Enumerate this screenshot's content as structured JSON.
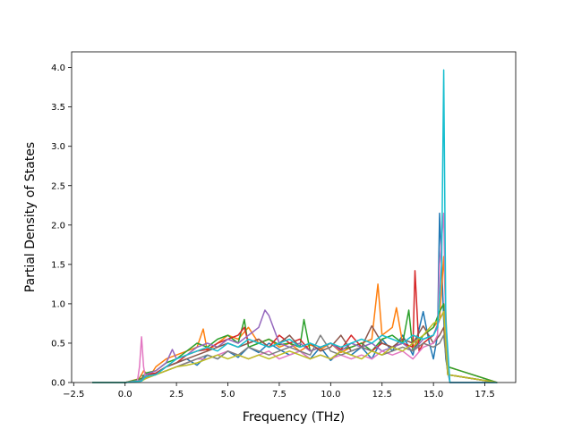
{
  "chart_data": {
    "type": "line",
    "title": "",
    "xlabel": "Frequency (THz)",
    "ylabel": "Partial Density of States",
    "xlim": [
      -2.6,
      19.0
    ],
    "ylim": [
      0.0,
      4.2
    ],
    "grid": false,
    "legend": "none",
    "x_ticks": [
      {
        "value": -2.5,
        "label": "−2.5"
      },
      {
        "value": 0.0,
        "label": "0.0"
      },
      {
        "value": 2.5,
        "label": "2.5"
      },
      {
        "value": 5.0,
        "label": "5.0"
      },
      {
        "value": 7.5,
        "label": "7.5"
      },
      {
        "value": 10.0,
        "label": "10.0"
      },
      {
        "value": 12.5,
        "label": "12.5"
      },
      {
        "value": 15.0,
        "label": "15.0"
      },
      {
        "value": 17.5,
        "label": "17.5"
      }
    ],
    "y_ticks": [
      {
        "value": 0.0,
        "label": "0.0"
      },
      {
        "value": 0.5,
        "label": "0.5"
      },
      {
        "value": 1.0,
        "label": "1.0"
      },
      {
        "value": 1.5,
        "label": "1.5"
      },
      {
        "value": 2.0,
        "label": "2.0"
      },
      {
        "value": 2.5,
        "label": "2.5"
      },
      {
        "value": 3.0,
        "label": "3.0"
      },
      {
        "value": 3.5,
        "label": "3.5"
      },
      {
        "value": 4.0,
        "label": "4.0"
      }
    ],
    "series": [
      {
        "color": "#1f77b4",
        "x": [
          -1.6,
          0.0,
          0.6,
          0.8,
          1.0,
          1.5,
          2.0,
          2.5,
          3.0,
          3.5,
          4.0,
          4.5,
          5.0,
          5.5,
          6.0,
          6.5,
          7.0,
          7.5,
          8.0,
          8.5,
          9.0,
          9.5,
          10.0,
          10.5,
          11.0,
          11.5,
          12.0,
          12.5,
          13.0,
          13.5,
          14.0,
          14.5,
          14.8,
          15.0,
          15.2,
          15.3,
          15.4,
          15.5,
          15.6,
          15.8,
          18.1
        ],
        "y": [
          0,
          0,
          0.02,
          0.1,
          0.05,
          0.12,
          0.2,
          0.25,
          0.3,
          0.22,
          0.35,
          0.3,
          0.4,
          0.32,
          0.45,
          0.38,
          0.5,
          0.42,
          0.35,
          0.4,
          0.3,
          0.45,
          0.28,
          0.4,
          0.35,
          0.45,
          0.3,
          0.55,
          0.4,
          0.6,
          0.35,
          0.9,
          0.5,
          0.3,
          0.6,
          2.15,
          1.5,
          0.8,
          0.3,
          0,
          0
        ]
      },
      {
        "color": "#ff7f0e",
        "x": [
          -1.6,
          0.0,
          0.7,
          0.9,
          1.2,
          1.5,
          2.0,
          2.5,
          3.0,
          3.5,
          3.8,
          4.0,
          4.5,
          5.0,
          5.5,
          6.0,
          6.5,
          7.0,
          7.5,
          8.0,
          8.5,
          9.0,
          9.5,
          10.0,
          10.5,
          11.0,
          11.5,
          12.0,
          12.3,
          12.5,
          13.0,
          13.2,
          13.5,
          14.0,
          14.5,
          15.0,
          15.3,
          15.5,
          15.7,
          18.1
        ],
        "y": [
          0,
          0,
          0.05,
          0.15,
          0.08,
          0.2,
          0.3,
          0.35,
          0.4,
          0.45,
          0.68,
          0.4,
          0.5,
          0.6,
          0.55,
          0.7,
          0.5,
          0.55,
          0.45,
          0.5,
          0.4,
          0.48,
          0.42,
          0.5,
          0.38,
          0.45,
          0.5,
          0.55,
          1.25,
          0.6,
          0.7,
          0.95,
          0.5,
          0.45,
          0.6,
          0.7,
          0.8,
          1.6,
          0.2,
          0
        ]
      },
      {
        "color": "#2ca02c",
        "x": [
          -1.6,
          0.0,
          0.8,
          1.0,
          1.5,
          2.0,
          2.5,
          3.0,
          3.5,
          4.0,
          4.5,
          5.0,
          5.5,
          5.8,
          6.0,
          6.5,
          7.0,
          7.5,
          8.0,
          8.5,
          8.7,
          9.0,
          9.5,
          10.0,
          10.5,
          11.0,
          11.5,
          12.0,
          12.5,
          13.0,
          13.5,
          13.8,
          14.0,
          14.5,
          15.0,
          15.3,
          15.5,
          15.7,
          18.1
        ],
        "y": [
          0,
          0,
          0.05,
          0.12,
          0.15,
          0.25,
          0.3,
          0.4,
          0.5,
          0.45,
          0.55,
          0.6,
          0.5,
          0.8,
          0.45,
          0.5,
          0.55,
          0.48,
          0.5,
          0.45,
          0.8,
          0.4,
          0.45,
          0.5,
          0.42,
          0.45,
          0.5,
          0.4,
          0.55,
          0.6,
          0.5,
          0.92,
          0.4,
          0.6,
          0.7,
          0.9,
          1.0,
          0.2,
          0
        ]
      },
      {
        "color": "#d62728",
        "x": [
          -1.6,
          0.0,
          0.8,
          1.0,
          1.5,
          2.0,
          2.5,
          3.0,
          3.5,
          4.0,
          4.5,
          5.0,
          5.5,
          5.8,
          6.0,
          6.5,
          7.0,
          7.5,
          8.0,
          8.5,
          9.0,
          9.5,
          10.0,
          10.5,
          11.0,
          11.5,
          12.0,
          12.5,
          13.0,
          13.5,
          14.0,
          14.1,
          14.3,
          14.5,
          15.0,
          15.3,
          15.5,
          15.7,
          18.1
        ],
        "y": [
          0,
          0,
          0.03,
          0.1,
          0.12,
          0.2,
          0.25,
          0.35,
          0.4,
          0.42,
          0.5,
          0.55,
          0.6,
          0.7,
          0.5,
          0.55,
          0.45,
          0.6,
          0.5,
          0.55,
          0.4,
          0.45,
          0.5,
          0.42,
          0.6,
          0.45,
          0.4,
          0.5,
          0.45,
          0.5,
          0.45,
          1.42,
          0.4,
          0.5,
          0.6,
          0.8,
          0.9,
          0.1,
          0
        ]
      },
      {
        "color": "#9467bd",
        "x": [
          -1.6,
          0.0,
          0.8,
          1.0,
          1.5,
          2.0,
          2.3,
          2.5,
          3.0,
          3.5,
          4.0,
          4.5,
          5.0,
          5.5,
          6.0,
          6.5,
          6.8,
          7.0,
          7.5,
          8.0,
          8.5,
          9.0,
          9.5,
          10.0,
          10.5,
          11.0,
          11.5,
          12.0,
          12.5,
          13.0,
          13.5,
          14.0,
          14.5,
          15.0,
          15.3,
          15.5,
          15.7,
          18.1
        ],
        "y": [
          0,
          0,
          0.03,
          0.1,
          0.15,
          0.25,
          0.42,
          0.3,
          0.35,
          0.45,
          0.5,
          0.45,
          0.55,
          0.5,
          0.6,
          0.7,
          0.92,
          0.85,
          0.5,
          0.45,
          0.5,
          0.4,
          0.45,
          0.5,
          0.4,
          0.5,
          0.45,
          0.5,
          0.4,
          0.45,
          0.5,
          0.4,
          0.55,
          0.6,
          0.8,
          0.9,
          0.1,
          0
        ]
      },
      {
        "color": "#8c564b",
        "x": [
          -1.6,
          0.0,
          0.8,
          1.0,
          1.5,
          2.0,
          2.5,
          3.0,
          3.5,
          4.0,
          4.5,
          5.0,
          5.5,
          6.0,
          6.5,
          7.0,
          7.5,
          8.0,
          8.5,
          9.0,
          9.5,
          10.0,
          10.5,
          11.0,
          11.5,
          12.0,
          12.5,
          13.0,
          13.5,
          14.0,
          14.5,
          15.0,
          15.3,
          15.5,
          15.7,
          18.1
        ],
        "y": [
          0,
          0,
          0.02,
          0.08,
          0.1,
          0.2,
          0.25,
          0.3,
          0.35,
          0.4,
          0.45,
          0.5,
          0.45,
          0.5,
          0.55,
          0.45,
          0.5,
          0.6,
          0.45,
          0.5,
          0.4,
          0.45,
          0.6,
          0.4,
          0.45,
          0.72,
          0.5,
          0.45,
          0.55,
          0.5,
          0.72,
          0.5,
          0.6,
          0.7,
          0.1,
          0
        ]
      },
      {
        "color": "#e377c2",
        "x": [
          -1.6,
          0.0,
          0.6,
          0.7,
          0.8,
          0.9,
          1.0,
          1.5,
          2.0,
          2.5,
          3.0,
          3.5,
          4.0,
          4.5,
          5.0,
          5.5,
          6.0,
          6.5,
          7.0,
          7.5,
          8.0,
          8.5,
          9.0,
          9.5,
          10.0,
          10.5,
          11.0,
          11.5,
          12.0,
          12.5,
          13.0,
          13.5,
          14.0,
          14.5,
          15.0,
          15.2,
          15.3,
          15.5,
          15.6,
          15.8,
          18.1
        ],
        "y": [
          0,
          0,
          0.02,
          0.2,
          0.58,
          0.2,
          0.05,
          0.1,
          0.15,
          0.2,
          0.25,
          0.3,
          0.3,
          0.35,
          0.4,
          0.35,
          0.3,
          0.35,
          0.4,
          0.3,
          0.35,
          0.4,
          0.3,
          0.35,
          0.3,
          0.35,
          0.3,
          0.35,
          0.3,
          0.4,
          0.35,
          0.4,
          0.3,
          0.45,
          0.5,
          0.6,
          1.5,
          2.15,
          0.6,
          0,
          0
        ]
      },
      {
        "color": "#7f7f7f",
        "x": [
          -1.6,
          0.0,
          0.8,
          1.0,
          1.5,
          2.0,
          2.5,
          3.0,
          3.5,
          4.0,
          4.5,
          5.0,
          5.5,
          6.0,
          6.5,
          7.0,
          7.5,
          8.0,
          8.5,
          9.0,
          9.5,
          10.0,
          10.5,
          11.0,
          11.5,
          12.0,
          12.5,
          13.0,
          13.5,
          14.0,
          14.5,
          15.0,
          15.3,
          15.5,
          15.7,
          18.1
        ],
        "y": [
          0,
          0,
          0.02,
          0.06,
          0.1,
          0.15,
          0.2,
          0.25,
          0.3,
          0.35,
          0.3,
          0.4,
          0.35,
          0.45,
          0.4,
          0.35,
          0.4,
          0.45,
          0.4,
          0.35,
          0.6,
          0.4,
          0.35,
          0.4,
          0.45,
          0.4,
          0.35,
          0.4,
          0.45,
          0.4,
          0.5,
          0.45,
          0.5,
          0.6,
          0.1,
          0
        ]
      },
      {
        "color": "#bcbd22",
        "x": [
          -1.6,
          0.0,
          0.8,
          1.0,
          1.5,
          2.0,
          2.5,
          3.0,
          3.5,
          4.0,
          4.5,
          5.0,
          5.5,
          6.0,
          6.5,
          7.0,
          7.5,
          8.0,
          8.5,
          9.0,
          9.5,
          10.0,
          10.5,
          11.0,
          11.5,
          12.0,
          12.5,
          13.0,
          13.5,
          14.0,
          14.5,
          15.0,
          15.3,
          15.5,
          15.7,
          18.1
        ],
        "y": [
          0,
          0,
          0.02,
          0.05,
          0.1,
          0.15,
          0.2,
          0.22,
          0.25,
          0.3,
          0.35,
          0.3,
          0.35,
          0.3,
          0.35,
          0.3,
          0.35,
          0.4,
          0.35,
          0.3,
          0.35,
          0.3,
          0.4,
          0.35,
          0.3,
          0.4,
          0.35,
          0.45,
          0.4,
          0.5,
          0.6,
          0.75,
          0.8,
          0.9,
          0.1,
          0
        ]
      },
      {
        "color": "#17becf",
        "x": [
          -1.6,
          0.0,
          0.8,
          1.0,
          1.5,
          2.0,
          2.5,
          3.0,
          3.5,
          4.0,
          4.5,
          5.0,
          5.5,
          6.0,
          6.5,
          7.0,
          7.5,
          8.0,
          8.5,
          9.0,
          9.5,
          10.0,
          10.5,
          11.0,
          11.5,
          12.0,
          12.5,
          13.0,
          13.5,
          14.0,
          14.5,
          15.0,
          15.2,
          15.4,
          15.5,
          15.6,
          15.8,
          18.1
        ],
        "y": [
          0,
          0,
          0.02,
          0.08,
          0.1,
          0.2,
          0.3,
          0.35,
          0.4,
          0.45,
          0.4,
          0.5,
          0.45,
          0.55,
          0.5,
          0.45,
          0.5,
          0.55,
          0.45,
          0.5,
          0.45,
          0.5,
          0.45,
          0.5,
          0.55,
          0.5,
          0.6,
          0.55,
          0.5,
          0.6,
          0.55,
          0.6,
          0.7,
          1.5,
          3.97,
          0.8,
          0,
          0
        ]
      }
    ]
  }
}
